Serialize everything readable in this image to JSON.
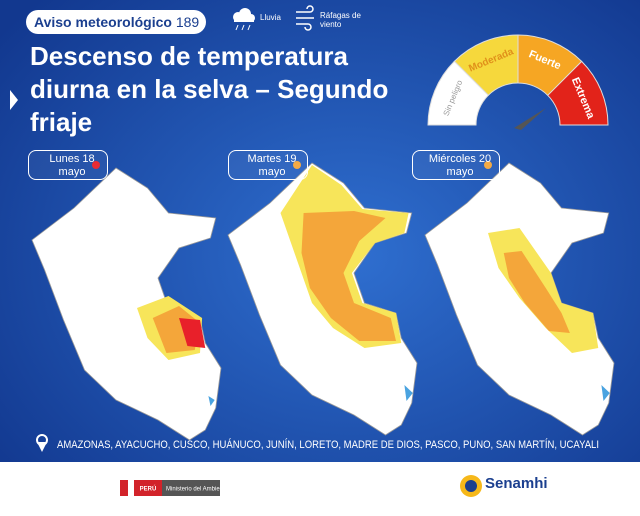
{
  "header": {
    "label": "Aviso meteorológico",
    "number": "189"
  },
  "legend": {
    "rain": "Lluvia",
    "wind": "Ráfagas de viento"
  },
  "title": "Descenso de temperatura diurna en la selva – Segundo friaje",
  "gauge": {
    "levels": [
      "Sin peligro",
      "Moderada",
      "Fuerte",
      "Extrema"
    ]
  },
  "days": [
    {
      "day": "Lunes 18",
      "month": "mayo"
    },
    {
      "day": "Martes 19",
      "month": "mayo"
    },
    {
      "day": "Miércoles 20",
      "month": "mayo"
    }
  ],
  "regions": "AMAZONAS, AYACUCHO, CUSCO, HUÁNUCO, JUNÍN, LORETO, MADRE DE DIOS, PASCO, PUNO, SAN MARTÍN, UCAYALI",
  "footer": {
    "country": "PERÚ",
    "ministry": "Ministerio del Ambiente",
    "agency": "Senamhi"
  }
}
